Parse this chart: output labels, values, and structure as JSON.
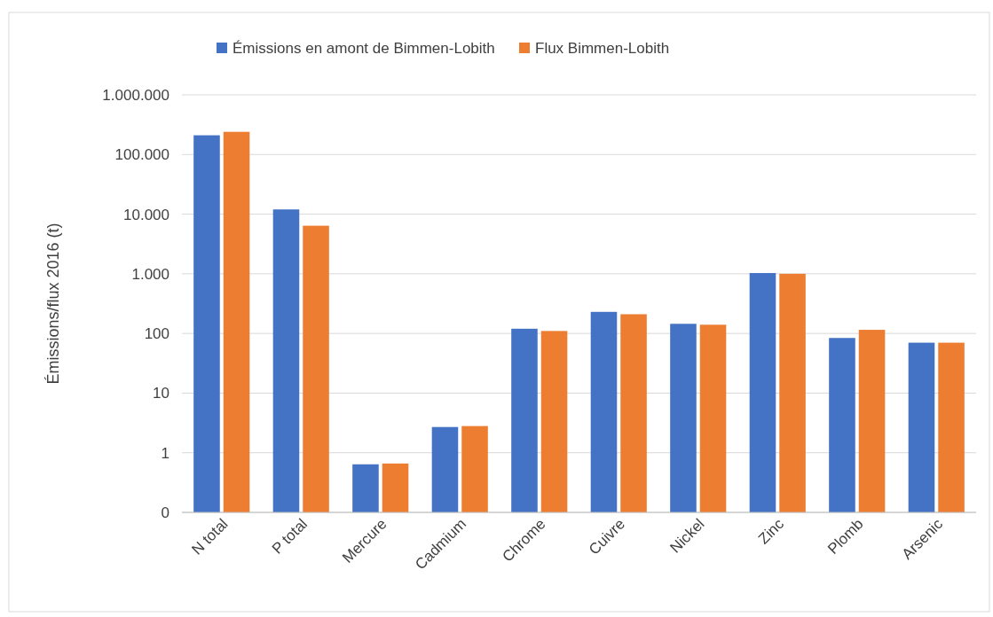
{
  "chart_data": {
    "type": "bar",
    "ylabel": "Émissions/flux 2016 (t)",
    "categories": [
      "N total",
      "P total",
      "Mercure",
      "Cadmium",
      "Chrome",
      "Cuivre",
      "Nickel",
      "Zinc",
      "Plomb",
      "Arsenic"
    ],
    "series": [
      {
        "name": "Émissions en amont de Bimmen-Lobith",
        "color": "#4472c4",
        "values": [
          210000,
          12000,
          0.64,
          2.7,
          120,
          230,
          145,
          1030,
          84,
          70
        ]
      },
      {
        "name": "Flux Bimmen-Lobith",
        "color": "#ed7d31",
        "values": [
          240000,
          6400,
          0.66,
          2.8,
          110,
          210,
          140,
          1000,
          115,
          70
        ]
      }
    ],
    "log": true,
    "ylim": [
      0.1,
      1000000
    ],
    "yticks": [
      {
        "value": 0.1,
        "label": "0"
      },
      1,
      10,
      100,
      {
        "value": 1000,
        "label": "1.000"
      },
      {
        "value": 10000,
        "label": "10.000"
      },
      {
        "value": 100000,
        "label": "100.000"
      },
      {
        "value": 1000000,
        "label": "1.000.000"
      }
    ],
    "grid": "y",
    "legend": "top"
  }
}
